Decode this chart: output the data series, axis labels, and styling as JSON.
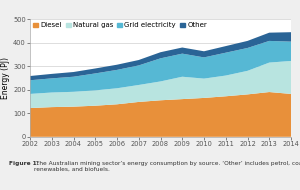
{
  "years": [
    2002,
    2003,
    2004,
    2005,
    2006,
    2007,
    2008,
    2009,
    2010,
    2011,
    2012,
    2013,
    2014
  ],
  "diesel": [
    122,
    126,
    128,
    132,
    138,
    148,
    155,
    160,
    165,
    172,
    180,
    190,
    182
  ],
  "natural_gas": [
    60,
    62,
    63,
    65,
    68,
    72,
    80,
    95,
    82,
    88,
    100,
    125,
    140
  ],
  "grid_electricity": [
    58,
    60,
    64,
    72,
    78,
    83,
    98,
    98,
    90,
    97,
    97,
    92,
    82
  ],
  "other": [
    18,
    19,
    20,
    21,
    22,
    23,
    26,
    26,
    26,
    28,
    30,
    35,
    40
  ],
  "colors": {
    "diesel": "#E8903A",
    "natural_gas": "#B8E4E0",
    "grid_electricity": "#56B8D4",
    "other": "#2A6496"
  },
  "labels": [
    "Diesel",
    "Natural gas",
    "Grid electricity",
    "Other"
  ],
  "ylabel": "Energy (PJ)",
  "ylim": [
    0,
    500
  ],
  "yticks": [
    0,
    100,
    200,
    300,
    400,
    500
  ],
  "background_color": "#efefef",
  "plot_bg": "#ffffff",
  "legend_fontsize": 5.0,
  "axis_fontsize": 5.5,
  "tick_fontsize": 4.8,
  "caption_bold": "Figure 1:",
  "caption_normal": " The Australian mining sector’s energy consumption by source. ‘Other’ includes petrol, coal, LNG,\nrenewables, and biofuels."
}
